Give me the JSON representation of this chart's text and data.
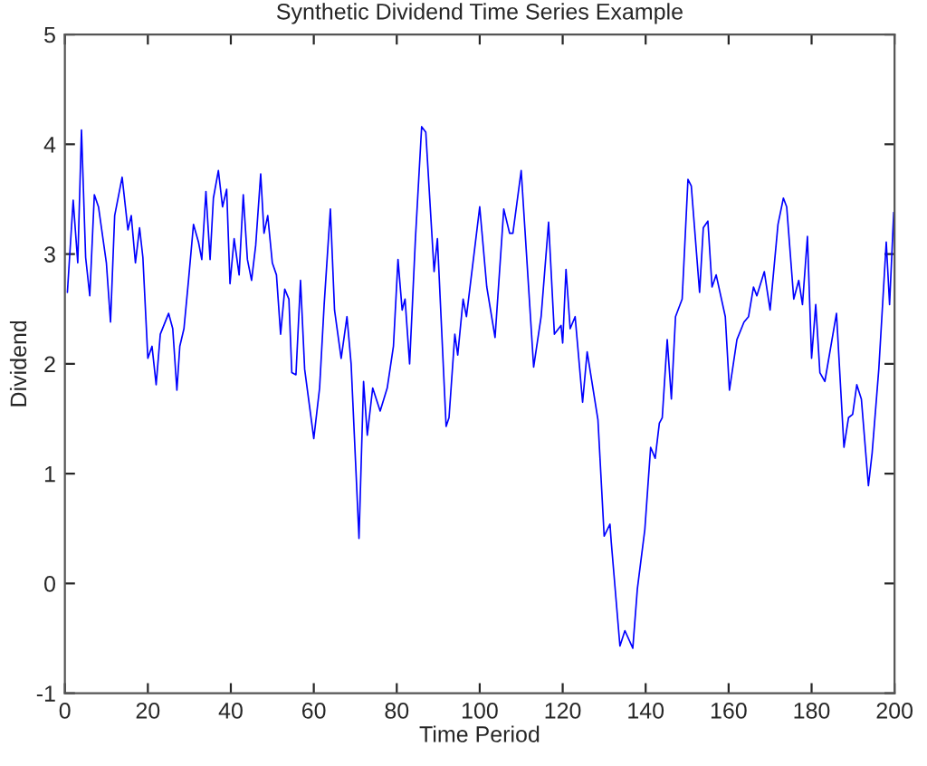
{
  "chart_data": {
    "type": "line",
    "title": "Synthetic Dividend Time Series Example",
    "xlabel": "Time Period",
    "ylabel": "Dividend",
    "xlim": [
      0,
      200
    ],
    "xticks": [
      0,
      20,
      40,
      60,
      80,
      100,
      120,
      140,
      160,
      180,
      200
    ],
    "ylim": [
      -1,
      5
    ],
    "yticks": [
      -1,
      0,
      1,
      2,
      3,
      4,
      5
    ],
    "grid": false,
    "legend": false,
    "marker": "none",
    "line_style": "solid",
    "series": [
      {
        "color": "#0000ff",
        "x": [
          0.6,
          2,
          3.1,
          4,
          5,
          6,
          7.1,
          8.1,
          10,
          11,
          12,
          13.8,
          15.2,
          16,
          17,
          18,
          18.8,
          20,
          21,
          22,
          23,
          25,
          26,
          27,
          27.7,
          28.7,
          29.8,
          31,
          32.2,
          33,
          34,
          35,
          35.8,
          37,
          38,
          39,
          39.8,
          40.8,
          42,
          43,
          44,
          45,
          46,
          47.2,
          48,
          48.9,
          50,
          51,
          52,
          53,
          54,
          54.7,
          55.7,
          56.8,
          57.8,
          60,
          61.4,
          62.5,
          64,
          65,
          66.6,
          68,
          69,
          70.9,
          72,
          72.9,
          74.2,
          76,
          77.7,
          79.2,
          80.3,
          81.3,
          82,
          83.1,
          84.5,
          86,
          87,
          89,
          89.8,
          91.9,
          92.6,
          94,
          94.7,
          96,
          96.8,
          100,
          101.7,
          103.7,
          105.8,
          107.2,
          108,
          110,
          113,
          114.8,
          116.6,
          118,
          119.6,
          120,
          120.8,
          121.8,
          123,
          124.8,
          125.9,
          128.5,
          130,
          131.4,
          131.7,
          133.8,
          135,
          136.9,
          138,
          139.8,
          141.2,
          142.3,
          143.3,
          144,
          145.2,
          146.2,
          147.2,
          148.8,
          150.2,
          151,
          153,
          153.9,
          155,
          156,
          157,
          159.2,
          160.2,
          162,
          163.7,
          164.8,
          166,
          166.8,
          168.6,
          170,
          171.9,
          173.2,
          174,
          175.7,
          176.9,
          177.8,
          179,
          180,
          181,
          182,
          183.2,
          186,
          187.8,
          188.9,
          189.9,
          190.9,
          192,
          193.7,
          194.6,
          196.2,
          198,
          198.8,
          199.8
        ],
        "values": [
          2.65,
          3.49,
          2.92,
          4.13,
          2.97,
          2.62,
          3.54,
          3.43,
          2.92,
          2.38,
          3.35,
          3.7,
          3.22,
          3.35,
          2.92,
          3.24,
          2.97,
          2.05,
          2.16,
          1.81,
          2.27,
          2.46,
          2.32,
          1.76,
          2.16,
          2.32,
          2.76,
          3.27,
          3.11,
          2.95,
          3.57,
          2.95,
          3.51,
          3.76,
          3.43,
          3.59,
          2.73,
          3.14,
          2.81,
          3.54,
          2.95,
          2.76,
          3.08,
          3.73,
          3.19,
          3.35,
          2.92,
          2.81,
          2.27,
          2.68,
          2.59,
          1.92,
          1.9,
          2.76,
          1.95,
          1.32,
          1.78,
          2.54,
          3.41,
          2.49,
          2.05,
          2.43,
          2.0,
          0.41,
          1.84,
          1.35,
          1.78,
          1.57,
          1.78,
          2.16,
          2.95,
          2.49,
          2.59,
          2.0,
          3.14,
          4.16,
          4.11,
          2.84,
          3.14,
          1.43,
          1.51,
          2.27,
          2.08,
          2.59,
          2.43,
          3.43,
          2.7,
          2.24,
          3.41,
          3.19,
          3.19,
          3.76,
          1.97,
          2.43,
          3.29,
          2.27,
          2.35,
          2.19,
          2.86,
          2.32,
          2.43,
          1.65,
          2.11,
          1.49,
          0.43,
          0.54,
          0.38,
          -0.57,
          -0.43,
          -0.59,
          -0.05,
          0.49,
          1.24,
          1.14,
          1.46,
          1.51,
          2.22,
          1.68,
          2.43,
          2.59,
          3.68,
          3.62,
          2.65,
          3.24,
          3.3,
          2.7,
          2.81,
          2.43,
          1.76,
          2.22,
          2.38,
          2.43,
          2.7,
          2.62,
          2.84,
          2.49,
          3.27,
          3.51,
          3.43,
          2.59,
          2.76,
          2.54,
          3.16,
          2.05,
          2.54,
          1.92,
          1.84,
          2.46,
          1.24,
          1.51,
          1.54,
          1.81,
          1.68,
          0.89,
          1.19,
          1.95,
          3.11,
          2.54,
          3.38
        ]
      }
    ]
  }
}
